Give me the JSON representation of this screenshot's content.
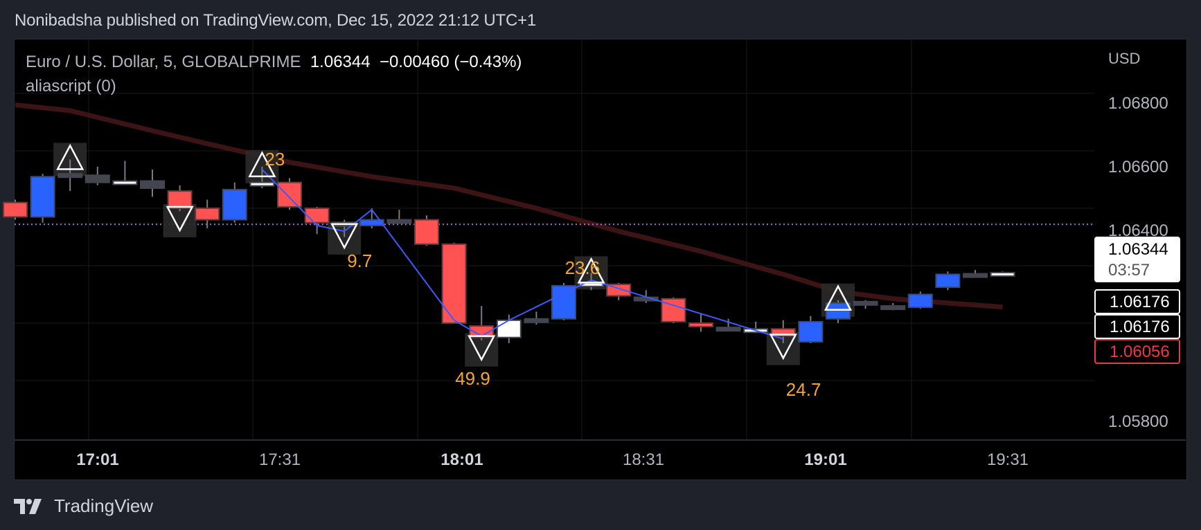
{
  "header": {
    "published_line": "Nonibadsha published on TradingView.com, Dec 15, 2022 21:12 UTC+1"
  },
  "legend": {
    "symbol": "Euro / U.S. Dollar, 5, GLOBALPRIME",
    "last": "1.06344",
    "change": "−0.00460 (−0.43%)",
    "indicator": "aliascript (0)"
  },
  "price_axis": {
    "currency": "USD",
    "ticks": [
      "1.06800",
      "1.06600",
      "1.06400",
      "1.05800"
    ],
    "last_price_tag": "1.06344",
    "countdown": "03:57",
    "tag_a": "1.06176",
    "tag_b": "1.06176",
    "tag_c": "1.06056"
  },
  "time_axis": {
    "ticks": [
      {
        "label": "17:01",
        "bold": true
      },
      {
        "label": "17:31",
        "bold": false
      },
      {
        "label": "18:01",
        "bold": true
      },
      {
        "label": "18:31",
        "bold": false
      },
      {
        "label": "19:01",
        "bold": true
      },
      {
        "label": "19:31",
        "bold": false
      }
    ]
  },
  "footer": {
    "brand": "TradingView"
  },
  "colors": {
    "up": "#2962ff",
    "down": "#ff5252",
    "neutral": "#434651",
    "doji_white": "#ffffff",
    "ma": "#3d1416",
    "zigzag": "#3d5afe",
    "label": "#f7a531",
    "last_line": "#b26cd8"
  },
  "chart_data": {
    "type": "candlestick",
    "title": "Euro / U.S. Dollar, 5, GLOBALPRIME",
    "xlabel": "",
    "ylabel": "USD",
    "ylim": [
      1.0575,
      1.069
    ],
    "x_ticks": [
      "17:01",
      "17:31",
      "18:01",
      "18:31",
      "19:01",
      "19:31"
    ],
    "y_ticks": [
      1.068,
      1.066,
      1.064,
      1.058
    ],
    "grid": true,
    "last_price": 1.06344,
    "change": -0.0046,
    "change_pct": -0.43,
    "candles": [
      {
        "o": 1.0642,
        "h": 1.0643,
        "l": 1.0636,
        "c": 1.0637,
        "col": "down"
      },
      {
        "o": 1.0637,
        "h": 1.0652,
        "l": 1.0635,
        "c": 1.0651,
        "col": "up"
      },
      {
        "o": 1.0652,
        "h": 1.0657,
        "l": 1.0646,
        "c": 1.06515,
        "col": "neutral"
      },
      {
        "o": 1.06515,
        "h": 1.06545,
        "l": 1.0648,
        "c": 1.0649,
        "col": "neutral"
      },
      {
        "o": 1.06495,
        "h": 1.06565,
        "l": 1.06485,
        "c": 1.0649,
        "col": "doji_white"
      },
      {
        "o": 1.06495,
        "h": 1.06535,
        "l": 1.0644,
        "c": 1.0647,
        "col": "neutral"
      },
      {
        "o": 1.0646,
        "h": 1.0648,
        "l": 1.0639,
        "c": 1.064,
        "col": "down"
      },
      {
        "o": 1.064,
        "h": 1.0643,
        "l": 1.0633,
        "c": 1.0636,
        "col": "down"
      },
      {
        "o": 1.0636,
        "h": 1.0649,
        "l": 1.0635,
        "c": 1.06465,
        "col": "up"
      },
      {
        "o": 1.0649,
        "h": 1.06545,
        "l": 1.0647,
        "c": 1.0648,
        "col": "doji_white"
      },
      {
        "o": 1.0649,
        "h": 1.06505,
        "l": 1.06395,
        "c": 1.06405,
        "col": "down"
      },
      {
        "o": 1.064,
        "h": 1.06405,
        "l": 1.0631,
        "c": 1.0635,
        "col": "down"
      },
      {
        "o": 1.0635,
        "h": 1.0636,
        "l": 1.063,
        "c": 1.0634,
        "col": "neutral"
      },
      {
        "o": 1.0634,
        "h": 1.064,
        "l": 1.0633,
        "c": 1.0636,
        "col": "up"
      },
      {
        "o": 1.0636,
        "h": 1.06395,
        "l": 1.0635,
        "c": 1.0636,
        "col": "neutral"
      },
      {
        "o": 1.0636,
        "h": 1.06375,
        "l": 1.0627,
        "c": 1.06275,
        "col": "down"
      },
      {
        "o": 1.06275,
        "h": 1.0628,
        "l": 1.06,
        "c": 1.06,
        "col": "down"
      },
      {
        "o": 1.0599,
        "h": 1.0606,
        "l": 1.0594,
        "c": 1.0595,
        "col": "down"
      },
      {
        "o": 1.0595,
        "h": 1.0603,
        "l": 1.0593,
        "c": 1.0601,
        "col": "doji_white"
      },
      {
        "o": 1.0601,
        "h": 1.0604,
        "l": 1.05995,
        "c": 1.06015,
        "col": "neutral"
      },
      {
        "o": 1.06015,
        "h": 1.0614,
        "l": 1.0601,
        "c": 1.0613,
        "col": "up"
      },
      {
        "o": 1.0614,
        "h": 1.06175,
        "l": 1.06115,
        "c": 1.06135,
        "col": "doji_white"
      },
      {
        "o": 1.06135,
        "h": 1.0614,
        "l": 1.0608,
        "c": 1.06095,
        "col": "down"
      },
      {
        "o": 1.0609,
        "h": 1.06115,
        "l": 1.0607,
        "c": 1.06085,
        "col": "neutral"
      },
      {
        "o": 1.06085,
        "h": 1.0609,
        "l": 1.06,
        "c": 1.06005,
        "col": "down"
      },
      {
        "o": 1.06,
        "h": 1.0603,
        "l": 1.0597,
        "c": 1.0599,
        "col": "down"
      },
      {
        "o": 1.05985,
        "h": 1.06015,
        "l": 1.05975,
        "c": 1.0598,
        "col": "neutral"
      },
      {
        "o": 1.0598,
        "h": 1.06005,
        "l": 1.05965,
        "c": 1.05975,
        "col": "doji_white"
      },
      {
        "o": 1.0598,
        "h": 1.0601,
        "l": 1.0593,
        "c": 1.05955,
        "col": "down"
      },
      {
        "o": 1.05935,
        "h": 1.06025,
        "l": 1.0593,
        "c": 1.06005,
        "col": "up"
      },
      {
        "o": 1.06015,
        "h": 1.0608,
        "l": 1.06,
        "c": 1.0607,
        "col": "up"
      },
      {
        "o": 1.06075,
        "h": 1.0608,
        "l": 1.0605,
        "c": 1.06065,
        "col": "neutral"
      },
      {
        "o": 1.0606,
        "h": 1.0607,
        "l": 1.06045,
        "c": 1.06055,
        "col": "neutral"
      },
      {
        "o": 1.06055,
        "h": 1.0611,
        "l": 1.0605,
        "c": 1.061,
        "col": "up"
      },
      {
        "o": 1.06125,
        "h": 1.0618,
        "l": 1.06115,
        "c": 1.0617,
        "col": "up"
      },
      {
        "o": 1.0617,
        "h": 1.06185,
        "l": 1.0616,
        "c": 1.06172,
        "col": "neutral"
      },
      {
        "o": 1.06176,
        "h": 1.0618,
        "l": 1.0617,
        "c": 1.06176,
        "col": "doji_white"
      }
    ],
    "moving_average": [
      [
        0,
        1.0676
      ],
      [
        2,
        1.0674
      ],
      [
        5,
        1.0667
      ],
      [
        7,
        1.06625
      ],
      [
        10,
        1.0656
      ],
      [
        13,
        1.0651
      ],
      [
        16,
        1.0647
      ],
      [
        19,
        1.064
      ],
      [
        22,
        1.0632
      ],
      [
        25,
        1.0625
      ],
      [
        28,
        1.0617
      ],
      [
        30,
        1.0611
      ],
      [
        32,
        1.06085
      ],
      [
        34,
        1.0607
      ],
      [
        36,
        1.06056
      ]
    ],
    "zigzag": [
      [
        9,
        1.06535
      ],
      [
        11,
        1.0634
      ],
      [
        12,
        1.0632
      ],
      [
        13,
        1.06395
      ],
      [
        16,
        1.0601
      ],
      [
        17,
        1.05955
      ],
      [
        18,
        1.0601
      ],
      [
        21,
        1.0615
      ],
      [
        28,
        1.05945
      ]
    ],
    "signals": [
      {
        "index": 2,
        "type": "up",
        "label": ""
      },
      {
        "index": 6,
        "type": "down",
        "label": ""
      },
      {
        "index": 9,
        "type": "up",
        "label": "23"
      },
      {
        "index": 12,
        "type": "down",
        "label": "9.7"
      },
      {
        "index": 17,
        "type": "down",
        "label": "49.9"
      },
      {
        "index": 21,
        "type": "up",
        "label": "23.6"
      },
      {
        "index": 28,
        "type": "down",
        "label": "24.7"
      },
      {
        "index": 30,
        "type": "up",
        "label": ""
      }
    ]
  }
}
